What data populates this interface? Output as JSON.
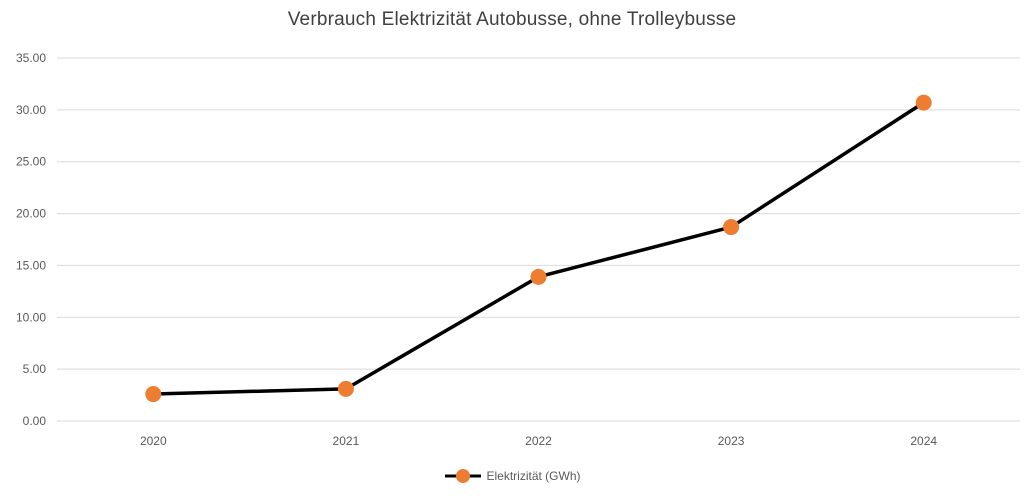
{
  "chart_data": {
    "type": "line",
    "title": "Verbrauch Elektrizität Autobusse, ohne Trolleybusse",
    "categories": [
      "2020",
      "2021",
      "2022",
      "2023",
      "2024"
    ],
    "series": [
      {
        "name": "Elektrizität (GWh)",
        "values": [
          2.6,
          3.1,
          13.9,
          18.7,
          30.7
        ]
      }
    ],
    "xlabel": "",
    "ylabel": "",
    "ylim": [
      0,
      35
    ],
    "y_tick_step": 5,
    "y_tick_labels": [
      "0.00",
      "5.00",
      "10.00",
      "15.00",
      "20.00",
      "25.00",
      "30.00",
      "35.00"
    ],
    "grid": true,
    "legend_position": "bottom"
  },
  "legend": {
    "label": "Elektrizität (GWh)"
  },
  "colors": {
    "line": "#000000",
    "marker": "#ED7D31",
    "grid": "#D9D9D9",
    "axis_text": "#595959",
    "title_text": "#404040",
    "background": "#FFFFFF"
  }
}
